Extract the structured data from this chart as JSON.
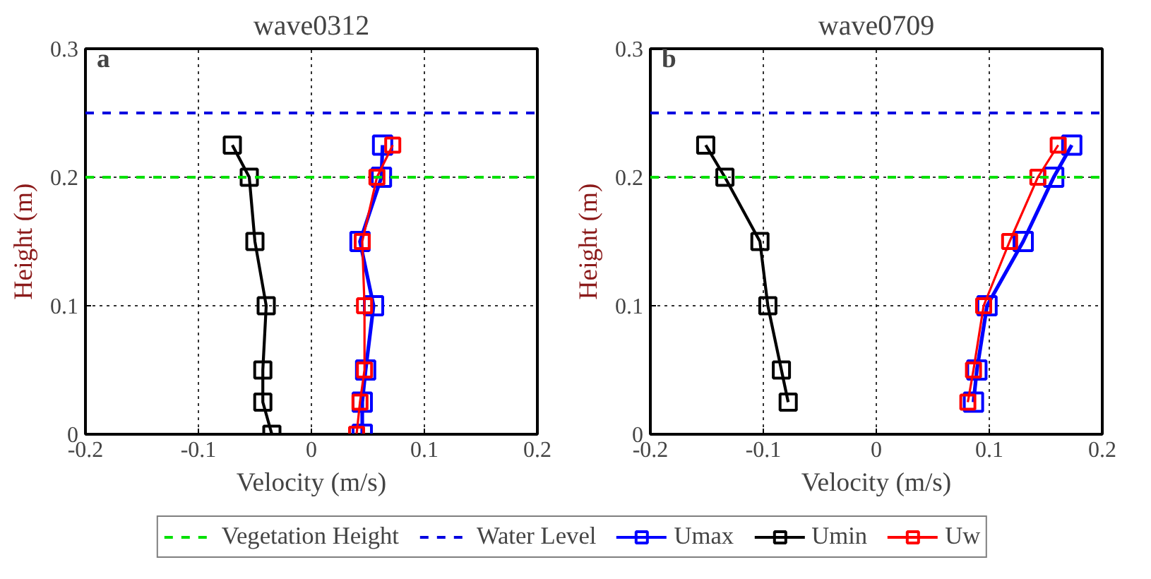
{
  "chart_data": [
    {
      "type": "line",
      "title": "wave0312",
      "xlabel": "Velocity (m/s)",
      "ylabel": "Height (m)",
      "annotations": [
        "a"
      ],
      "xlim": [
        -0.2,
        0.2
      ],
      "ylim": [
        0,
        0.3
      ],
      "xticks": [
        -0.2,
        -0.1,
        0,
        0.1,
        0.2
      ],
      "yticks": [
        0,
        0.1,
        0.2,
        0.3
      ],
      "grid": true,
      "marker": "square",
      "line_style": "solid",
      "legend": "bottom",
      "ref_lines": [
        {
          "axis": "y",
          "value": 0.2,
          "label": "Vegetation Height",
          "color": "#00e000",
          "line_style": "dashed"
        },
        {
          "axis": "y",
          "value": 0.25,
          "label": "Water Level",
          "color": "#0000e0",
          "line_style": "dashed"
        }
      ],
      "series": [
        {
          "name": "Umax",
          "color": "#0000ff",
          "x": [
            0.063,
            0.062,
            0.043,
            0.055,
            0.048,
            0.045,
            0.045
          ],
          "values": [
            0.225,
            0.2,
            0.15,
            0.1,
            0.05,
            0.025,
            0
          ]
        },
        {
          "name": "Umin",
          "color": "#000000",
          "x": [
            -0.07,
            -0.055,
            -0.05,
            -0.04,
            -0.043,
            -0.043,
            -0.035
          ],
          "values": [
            0.225,
            0.2,
            0.15,
            0.1,
            0.05,
            0.025,
            0
          ]
        },
        {
          "name": "Uw",
          "color": "#ff0000",
          "x": [
            0.072,
            0.058,
            0.045,
            0.047,
            0.047,
            0.043,
            0.04
          ],
          "values": [
            0.225,
            0.2,
            0.15,
            0.1,
            0.05,
            0.025,
            0
          ]
        }
      ]
    },
    {
      "type": "line",
      "title": "wave0709",
      "xlabel": "Velocity (m/s)",
      "ylabel": "Height (m)",
      "annotations": [
        "b"
      ],
      "xlim": [
        -0.2,
        0.2
      ],
      "ylim": [
        0,
        0.3
      ],
      "xticks": [
        -0.2,
        -0.1,
        0,
        0.1,
        0.2
      ],
      "yticks": [
        0,
        0.1,
        0.2,
        0.3
      ],
      "grid": true,
      "marker": "square",
      "line_style": "solid",
      "ref_lines": [
        {
          "axis": "y",
          "value": 0.2,
          "color": "#00e000",
          "line_style": "dashed"
        },
        {
          "axis": "y",
          "value": 0.25,
          "color": "#0000e0",
          "line_style": "dashed"
        }
      ],
      "series": [
        {
          "color": "#0000ff",
          "x": [
            0.173,
            0.157,
            0.13,
            0.098,
            0.089,
            0.086
          ],
          "values": [
            0.225,
            0.2,
            0.15,
            0.1,
            0.05,
            0.025
          ]
        },
        {
          "color": "#000000",
          "x": [
            -0.151,
            -0.134,
            -0.103,
            -0.096,
            -0.084,
            -0.078
          ],
          "values": [
            0.225,
            0.2,
            0.15,
            0.1,
            0.05,
            0.025
          ]
        },
        {
          "color": "#ff0000",
          "x": [
            0.161,
            0.143,
            0.118,
            0.095,
            0.086,
            0.081
          ],
          "values": [
            0.225,
            0.2,
            0.15,
            0.1,
            0.05,
            0.025
          ]
        }
      ]
    }
  ]
}
